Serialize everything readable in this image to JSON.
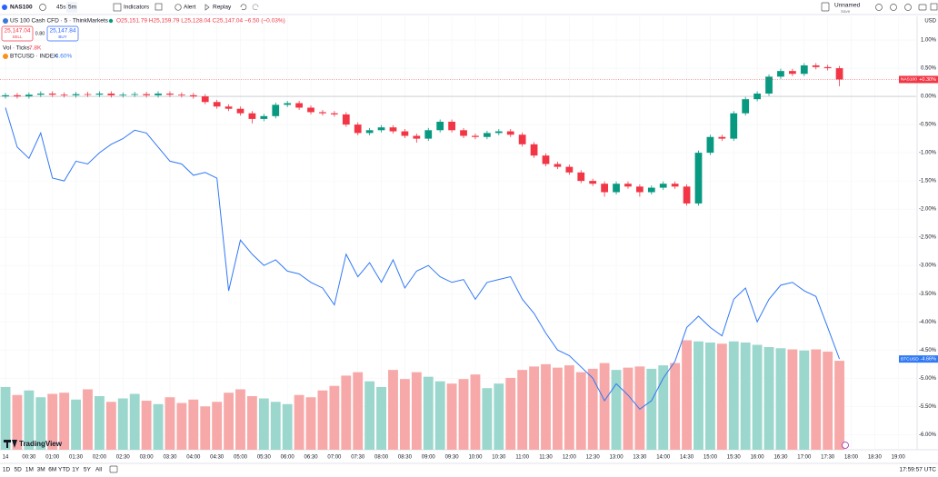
{
  "toolbar": {
    "symbol": "NAS100",
    "intervals": [
      "45s",
      "5m"
    ],
    "indicators": "Indicators",
    "alert": "Alert",
    "replay": "Replay",
    "layout_name": "Unnamed",
    "save": "Save"
  },
  "legend": {
    "title": "US 100 Cash CFD · 5 · ThinkMarkets",
    "ohlc": "O25,151.79 H25,159.79 L25,128.04 C25,147.04 −6.50 (−0.03%)",
    "sell_price": "25,147.04",
    "sell": "SELL",
    "spread": "0.80",
    "buy_price": "25,147.84",
    "buy": "BUY",
    "volume_label": "Vol · Ticks",
    "volume_value": "7.8K",
    "compare": "BTCUSD · INDEX",
    "compare_change": "−4.60%"
  },
  "chart_data": {
    "type": "candlestick",
    "y_axis_unit": "USD",
    "grid": true,
    "x": [
      0,
      15,
      30,
      45,
      60,
      75,
      90,
      105,
      120,
      135,
      150,
      165,
      180,
      195,
      210,
      225,
      240,
      255,
      270,
      285,
      300,
      315,
      330,
      345,
      360,
      375,
      390,
      405,
      420,
      435,
      450,
      465,
      480,
      495,
      510,
      525,
      540,
      555,
      570,
      585,
      600,
      615,
      630,
      645,
      660,
      675,
      690,
      705,
      720,
      735,
      750,
      765,
      780,
      795,
      810,
      825,
      840,
      855,
      870,
      885,
      900,
      915,
      930,
      945,
      960,
      975,
      990,
      1005,
      1020,
      1035,
      1050,
      1065
    ],
    "xlim": [
      -7,
      1163
    ],
    "xticks": [
      {
        "value": 0,
        "label": "14"
      },
      {
        "value": 30,
        "label": "00:30"
      },
      {
        "value": 60,
        "label": "01:00"
      },
      {
        "value": 90,
        "label": "01:30"
      },
      {
        "value": 120,
        "label": "02:00"
      },
      {
        "value": 150,
        "label": "02:30"
      },
      {
        "value": 180,
        "label": "03:00"
      },
      {
        "value": 210,
        "label": "03:30"
      },
      {
        "value": 240,
        "label": "04:00"
      },
      {
        "value": 270,
        "label": "04:30"
      },
      {
        "value": 300,
        "label": "05:00"
      },
      {
        "value": 330,
        "label": "05:30"
      },
      {
        "value": 360,
        "label": "06:00"
      },
      {
        "value": 390,
        "label": "06:30"
      },
      {
        "value": 420,
        "label": "07:00"
      },
      {
        "value": 450,
        "label": "07:30"
      },
      {
        "value": 480,
        "label": "08:00"
      },
      {
        "value": 510,
        "label": "08:30"
      },
      {
        "value": 540,
        "label": "09:00"
      },
      {
        "value": 570,
        "label": "09:30"
      },
      {
        "value": 600,
        "label": "10:00"
      },
      {
        "value": 630,
        "label": "10:30"
      },
      {
        "value": 660,
        "label": "11:00"
      },
      {
        "value": 690,
        "label": "11:30"
      },
      {
        "value": 720,
        "label": "12:00"
      },
      {
        "value": 750,
        "label": "12:30"
      },
      {
        "value": 780,
        "label": "13:00"
      },
      {
        "value": 810,
        "label": "13:30"
      },
      {
        "value": 840,
        "label": "14:00"
      },
      {
        "value": 870,
        "label": "14:30"
      },
      {
        "value": 900,
        "label": "15:00"
      },
      {
        "value": 930,
        "label": "15:30"
      },
      {
        "value": 960,
        "label": "16:00"
      },
      {
        "value": 990,
        "label": "16:30"
      },
      {
        "value": 1020,
        "label": "17:00"
      },
      {
        "value": 1050,
        "label": "17:30"
      },
      {
        "value": 1080,
        "label": "18:00"
      },
      {
        "value": 1110,
        "label": "18:30"
      },
      {
        "value": 1140,
        "label": "19:00"
      }
    ],
    "ylim": [
      -6.27,
      1.42
    ],
    "yticks": [
      {
        "value": 1,
        "label": "1.00%"
      },
      {
        "value": 0.5,
        "label": "0.50%"
      },
      {
        "value": 0,
        "label": "0.00%"
      },
      {
        "value": -0.5,
        "label": "-0.50%"
      },
      {
        "value": -1,
        "label": "-1.00%"
      },
      {
        "value": -1.5,
        "label": "-1.50%"
      },
      {
        "value": -2,
        "label": "-2.00%"
      },
      {
        "value": -2.5,
        "label": "-2.50%"
      },
      {
        "value": -3,
        "label": "-3.00%"
      },
      {
        "value": -3.5,
        "label": "-3.50%"
      },
      {
        "value": -4,
        "label": "-4.00%"
      },
      {
        "value": -4.5,
        "label": "-4.50%"
      },
      {
        "value": -5,
        "label": "-5.00%"
      },
      {
        "value": -5.5,
        "label": "-5.50%"
      },
      {
        "value": -6,
        "label": "-6.00%"
      }
    ],
    "vol_ylim": [
      0,
      38
    ],
    "series": [
      {
        "name": "NAS100",
        "type": "candlestick",
        "up_color": "#089981",
        "down_color": "#f23645",
        "last_value_label": "+0.30%",
        "open": [
          0,
          0.02,
          0.0,
          0.03,
          0.05,
          0.03,
          0.02,
          0.04,
          0.03,
          0.05,
          0.02,
          0.03,
          0.04,
          0.02,
          0.05,
          0.03,
          0.02,
          0.0,
          -0.1,
          -0.18,
          -0.22,
          -0.3,
          -0.4,
          -0.35,
          -0.15,
          -0.12,
          -0.2,
          -0.28,
          -0.3,
          -0.32,
          -0.5,
          -0.65,
          -0.6,
          -0.55,
          -0.62,
          -0.7,
          -0.75,
          -0.6,
          -0.45,
          -0.6,
          -0.7,
          -0.72,
          -0.65,
          -0.62,
          -0.68,
          -0.85,
          -1.05,
          -1.2,
          -1.25,
          -1.35,
          -1.5,
          -1.55,
          -1.7,
          -1.55,
          -1.6,
          -1.7,
          -1.62,
          -1.55,
          -1.6,
          -1.9,
          -1.0,
          -0.72,
          -0.75,
          -0.3,
          -0.05,
          0.05,
          0.35,
          0.45,
          0.4,
          0.55,
          0.52,
          0.5
        ],
        "high": [
          0.06,
          0.06,
          0.07,
          0.09,
          0.09,
          0.07,
          0.08,
          0.08,
          0.09,
          0.09,
          0.07,
          0.08,
          0.08,
          0.09,
          0.09,
          0.07,
          0.06,
          0.04,
          -0.06,
          -0.14,
          -0.18,
          -0.26,
          -0.31,
          -0.11,
          -0.08,
          -0.08,
          -0.16,
          -0.24,
          -0.26,
          -0.28,
          -0.46,
          -0.56,
          -0.51,
          -0.51,
          -0.58,
          -0.66,
          -0.56,
          -0.41,
          -0.41,
          -0.56,
          -0.66,
          -0.61,
          -0.58,
          -0.58,
          -0.64,
          -0.81,
          -1.01,
          -1.16,
          -1.21,
          -1.31,
          -1.46,
          -1.51,
          -1.51,
          -1.51,
          -1.56,
          -1.58,
          -1.51,
          -1.51,
          -1.56,
          -0.96,
          -0.68,
          -0.68,
          -0.26,
          -0.01,
          0.09,
          0.39,
          0.49,
          0.49,
          0.59,
          0.59,
          0.56,
          0.54
        ],
        "low": [
          -0.04,
          -0.04,
          -0.04,
          -0.01,
          -0.01,
          -0.02,
          -0.02,
          -0.01,
          -0.01,
          -0.02,
          -0.02,
          -0.01,
          -0.02,
          -0.02,
          -0.01,
          -0.02,
          -0.04,
          -0.14,
          -0.22,
          -0.26,
          -0.34,
          -0.48,
          -0.44,
          -0.39,
          -0.19,
          -0.24,
          -0.32,
          -0.34,
          -0.36,
          -0.54,
          -0.69,
          -0.69,
          -0.64,
          -0.66,
          -0.74,
          -0.82,
          -0.79,
          -0.64,
          -0.64,
          -0.74,
          -0.76,
          -0.76,
          -0.69,
          -0.72,
          -0.89,
          -1.09,
          -1.24,
          -1.29,
          -1.39,
          -1.54,
          -1.59,
          -1.78,
          -1.74,
          -1.64,
          -1.78,
          -1.74,
          -1.66,
          -1.64,
          -1.94,
          -1.94,
          -1.04,
          -0.79,
          -0.79,
          -0.34,
          -0.09,
          0.01,
          0.31,
          0.36,
          0.36,
          0.48,
          0.46,
          0.18
        ],
        "close": [
          0.02,
          0.0,
          0.03,
          0.05,
          0.03,
          0.02,
          0.04,
          0.03,
          0.05,
          0.02,
          0.03,
          0.04,
          0.02,
          0.05,
          0.03,
          0.02,
          0.0,
          -0.1,
          -0.18,
          -0.22,
          -0.3,
          -0.4,
          -0.35,
          -0.15,
          -0.12,
          -0.2,
          -0.28,
          -0.3,
          -0.32,
          -0.5,
          -0.65,
          -0.6,
          -0.55,
          -0.62,
          -0.7,
          -0.75,
          -0.6,
          -0.45,
          -0.6,
          -0.7,
          -0.72,
          -0.65,
          -0.62,
          -0.68,
          -0.85,
          -1.05,
          -1.2,
          -1.25,
          -1.35,
          -1.5,
          -1.55,
          -1.7,
          -1.55,
          -1.6,
          -1.7,
          -1.62,
          -1.55,
          -1.6,
          -1.9,
          -1.0,
          -0.72,
          -0.75,
          -0.3,
          -0.05,
          0.05,
          0.35,
          0.45,
          0.4,
          0.55,
          0.52,
          0.5,
          0.3
        ]
      },
      {
        "name": "BTCUSD",
        "type": "line",
        "color": "#3179f5",
        "last_value_label": "-4.66%",
        "values": [
          -0.2,
          -0.9,
          -1.1,
          -0.65,
          -1.45,
          -1.5,
          -1.15,
          -1.2,
          -1.0,
          -0.85,
          -0.75,
          -0.6,
          -0.65,
          -0.9,
          -1.15,
          -1.2,
          -1.4,
          -1.35,
          -1.45,
          -3.45,
          -2.55,
          -2.8,
          -3.0,
          -2.9,
          -3.1,
          -3.15,
          -3.3,
          -3.4,
          -3.7,
          -2.8,
          -3.2,
          -2.95,
          -3.3,
          -2.9,
          -3.4,
          -3.1,
          -3.0,
          -3.2,
          -3.3,
          -3.25,
          -3.6,
          -3.3,
          -3.25,
          -3.2,
          -3.6,
          -3.85,
          -4.2,
          -4.5,
          -4.6,
          -4.8,
          -5.0,
          -5.4,
          -5.1,
          -5.3,
          -5.55,
          -5.4,
          -5.0,
          -4.7,
          -4.1,
          -3.9,
          -4.1,
          -4.25,
          -3.6,
          -3.4,
          -4.0,
          -3.6,
          -3.35,
          -3.3,
          -3.45,
          -3.55,
          -4.1,
          -4.66
        ]
      },
      {
        "name": "Vol",
        "type": "volume",
        "axis": "vol",
        "up_color": "#9bd7cd",
        "down_color": "#f7a9a9",
        "values": [
          5.5,
          4.8,
          5.2,
          4.6,
          4.9,
          5.0,
          4.4,
          5.3,
          4.7,
          4.2,
          4.5,
          4.9,
          4.3,
          4.0,
          4.6,
          4.1,
          4.4,
          3.8,
          4.2,
          5.0,
          5.3,
          4.7,
          4.5,
          4.2,
          4.0,
          4.8,
          4.6,
          5.2,
          5.6,
          6.5,
          6.8,
          6.0,
          5.5,
          7.0,
          6.2,
          6.8,
          6.4,
          6.0,
          5.8,
          6.2,
          6.6,
          5.4,
          5.8,
          6.3,
          7.0,
          7.3,
          7.5,
          7.2,
          7.4,
          6.8,
          7.1,
          7.6,
          7.0,
          7.2,
          7.3,
          7.1,
          7.4,
          7.6,
          9.6,
          9.5,
          9.4,
          9.3,
          9.5,
          9.4,
          9.2,
          9.0,
          8.9,
          8.8,
          8.7,
          8.8,
          8.6,
          7.8
        ]
      }
    ]
  },
  "footer": {
    "ranges": [
      "1D",
      "5D",
      "1M",
      "3M",
      "6M",
      "YTD",
      "1Y",
      "5Y",
      "All"
    ],
    "clock": "17:59:57 UTC",
    "brand": "TradingView"
  }
}
